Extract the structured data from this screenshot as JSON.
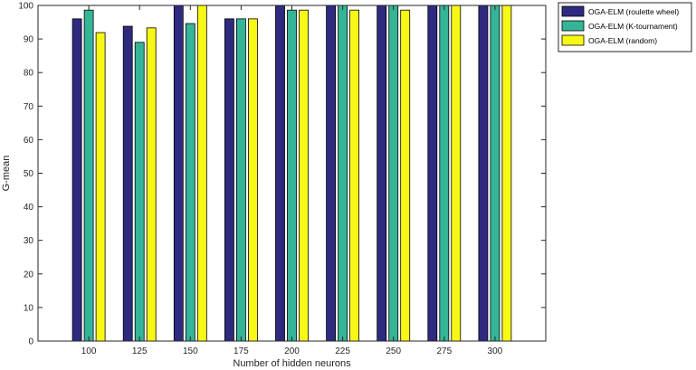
{
  "chart_data": {
    "type": "bar",
    "xlabel": "Number of hidden neurons",
    "ylabel": "G-mean",
    "ylim": [
      0,
      100
    ],
    "yticks": [
      0,
      10,
      20,
      30,
      40,
      50,
      60,
      70,
      80,
      90,
      100
    ],
    "categories": [
      "100",
      "125",
      "150",
      "175",
      "200",
      "225",
      "250",
      "275",
      "300"
    ],
    "series": [
      {
        "name": "OGA-ELM (roulette wheel)",
        "color": "#2e2a7f",
        "values": [
          96,
          93.8,
          100,
          96,
          100,
          100,
          100,
          100,
          100
        ]
      },
      {
        "name": "OGA-ELM (K-tournament)",
        "color": "#35b597",
        "values": [
          98.6,
          89,
          94.6,
          96,
          98.6,
          100,
          100,
          100,
          100
        ]
      },
      {
        "name": "OGA-ELM (random)",
        "color": "#f8f817",
        "values": [
          91.9,
          93.3,
          100,
          96,
          98.6,
          98.6,
          98.6,
          100,
          100
        ]
      }
    ],
    "grid": false,
    "legend_position": "top-right-outside"
  }
}
